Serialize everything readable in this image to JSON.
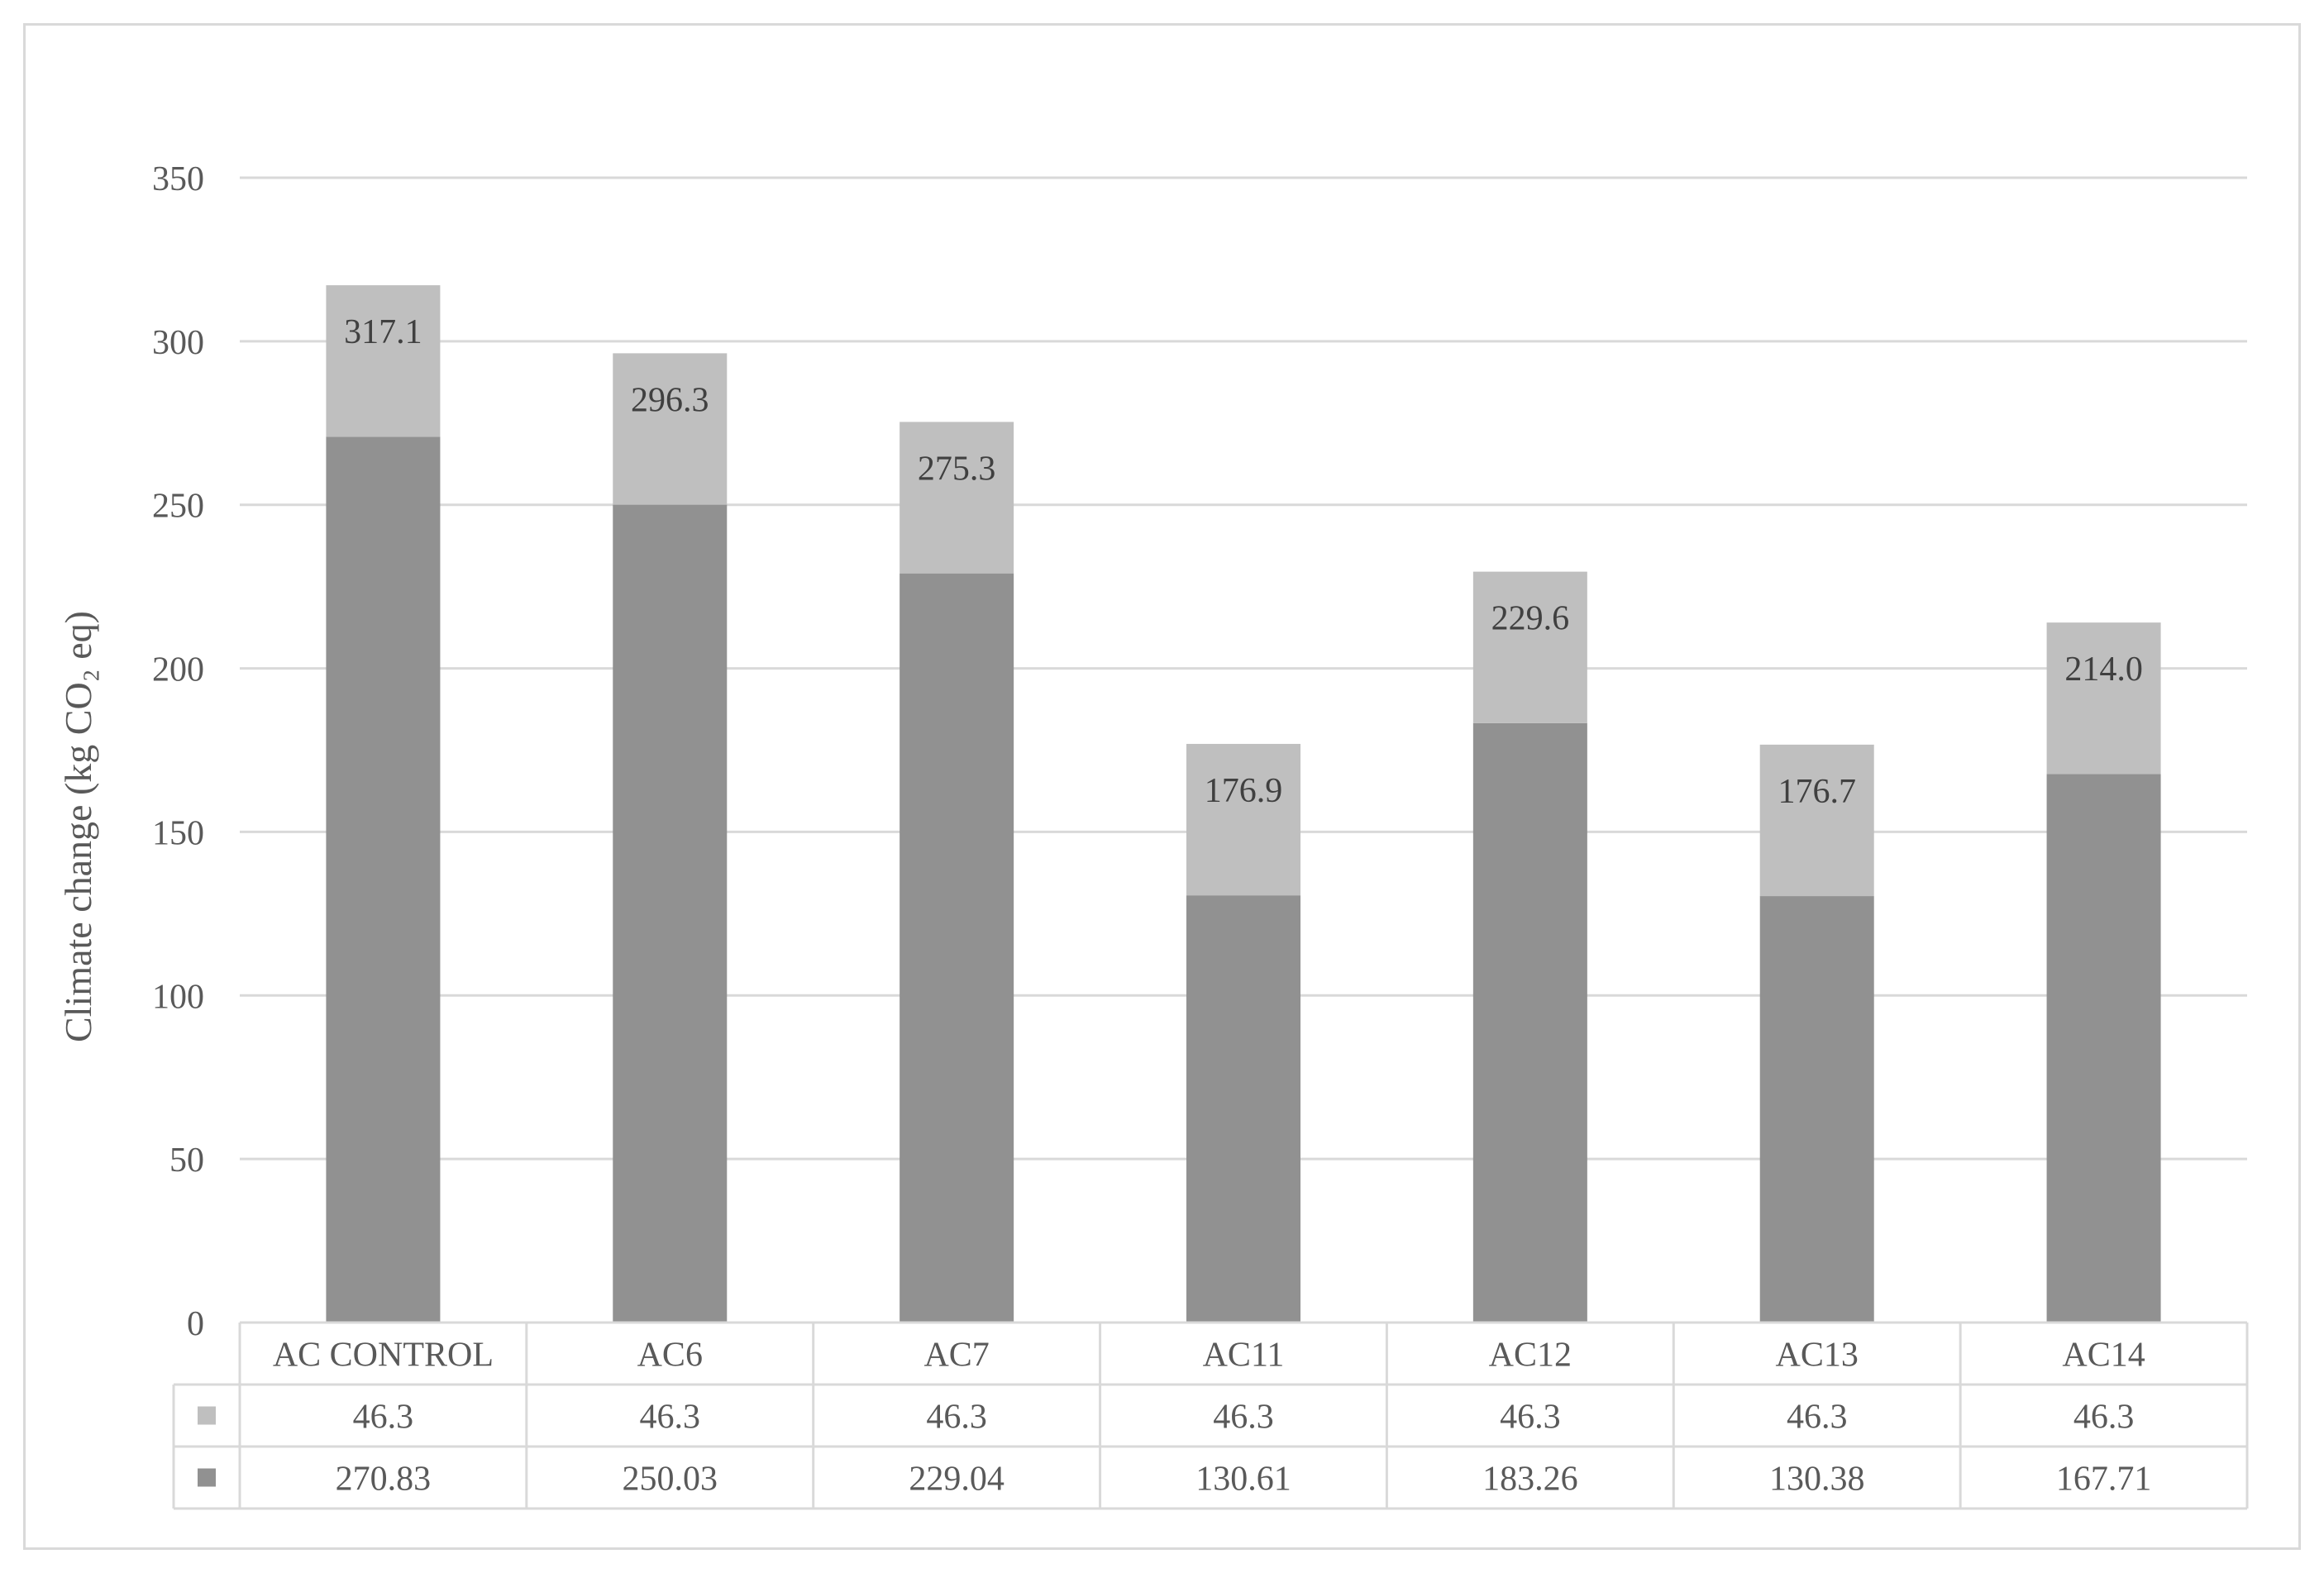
{
  "chart_data": {
    "type": "bar",
    "stacked": true,
    "ylabel": "Climate change (kg CO₂ eq)",
    "ylim": [
      0,
      350
    ],
    "yticks": [
      0,
      50,
      100,
      150,
      200,
      250,
      300,
      350
    ],
    "grid": true,
    "categories": [
      "AC CONTROL",
      "AC6",
      "AC7",
      "AC11",
      "AC12",
      "AC13",
      "AC14"
    ],
    "series": [
      {
        "color": "#919191",
        "values": [
          270.83,
          250.03,
          229.04,
          130.61,
          183.26,
          130.38,
          167.71
        ]
      },
      {
        "color": "#bfbfbf",
        "values": [
          46.3,
          46.3,
          46.3,
          46.3,
          46.3,
          46.3,
          46.3
        ]
      }
    ],
    "totals": [
      "317.1",
      "296.3",
      "275.3",
      "176.9",
      "229.6",
      "176.7",
      "214.0"
    ],
    "data_table": {
      "rows": [
        {
          "series_index": 1,
          "cells": [
            "46.3",
            "46.3",
            "46.3",
            "46.3",
            "46.3",
            "46.3",
            "46.3"
          ]
        },
        {
          "series_index": 0,
          "cells": [
            "270.83",
            "250.03",
            "229.04",
            "130.61",
            "183.26",
            "130.38",
            "167.71"
          ]
        }
      ]
    }
  }
}
